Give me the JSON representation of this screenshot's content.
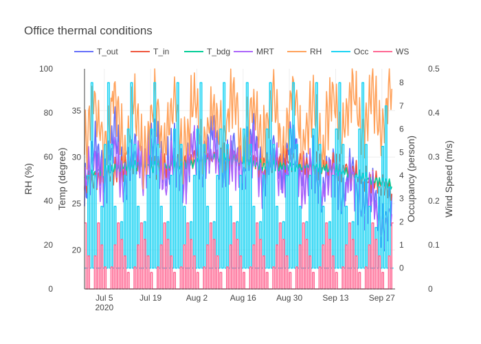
{
  "chart_data": {
    "type": "line",
    "title": "Office thermal conditions",
    "x_axis": {
      "type": "date",
      "range": [
        "2020-06-29",
        "2020-10-01"
      ],
      "ticks": [
        {
          "value": "2020-07-05",
          "label": "Jul 5",
          "sublabel": "2020"
        },
        {
          "value": "2020-07-19",
          "label": "Jul 19"
        },
        {
          "value": "2020-08-02",
          "label": "Aug 2"
        },
        {
          "value": "2020-08-16",
          "label": "Aug 16"
        },
        {
          "value": "2020-08-30",
          "label": "Aug 30"
        },
        {
          "value": "2020-09-13",
          "label": "Sep 13"
        },
        {
          "value": "2020-09-27",
          "label": "Sep 27"
        }
      ]
    },
    "y_axes": {
      "rh": {
        "label": "RH (%)",
        "range": [
          0,
          100
        ],
        "ticks": [
          0,
          20,
          40,
          60,
          80,
          100
        ]
      },
      "temp": {
        "label": "Temp (degree)",
        "range": [
          15.8,
          39.5
        ],
        "ticks": [
          20,
          25,
          30,
          35
        ]
      },
      "occ": {
        "label": "Occupancy (person)",
        "range": [
          -0.9,
          8.6
        ],
        "ticks": [
          0,
          1,
          2,
          3,
          4,
          5,
          6,
          7,
          8
        ]
      },
      "ws": {
        "label": "Wind Speed (m/s)",
        "range": [
          0,
          0.5
        ],
        "ticks": [
          0,
          0.1,
          0.2,
          0.3,
          0.4,
          0.5
        ]
      }
    },
    "legend_position": "top",
    "series": [
      {
        "name": "T_out",
        "axis": "temp",
        "color": "#636efa",
        "points": [
          [
            "2020-06-29",
            26
          ],
          [
            "2020-07-02",
            31
          ],
          [
            "2020-07-05",
            28
          ],
          [
            "2020-07-08",
            33
          ],
          [
            "2020-07-11",
            27
          ],
          [
            "2020-07-14",
            32
          ],
          [
            "2020-07-17",
            29
          ],
          [
            "2020-07-20",
            33
          ],
          [
            "2020-07-23",
            28
          ],
          [
            "2020-07-26",
            31
          ],
          [
            "2020-07-29",
            27
          ],
          [
            "2020-08-01",
            32
          ],
          [
            "2020-08-04",
            29
          ],
          [
            "2020-08-07",
            33
          ],
          [
            "2020-08-10",
            28
          ],
          [
            "2020-08-13",
            31
          ],
          [
            "2020-08-16",
            29
          ],
          [
            "2020-08-19",
            33
          ],
          [
            "2020-08-22",
            27
          ],
          [
            "2020-08-25",
            31
          ],
          [
            "2020-08-28",
            28
          ],
          [
            "2020-08-31",
            33
          ],
          [
            "2020-09-03",
            27
          ],
          [
            "2020-09-06",
            30
          ],
          [
            "2020-09-09",
            26
          ],
          [
            "2020-09-12",
            30
          ],
          [
            "2020-09-15",
            25
          ],
          [
            "2020-09-18",
            29
          ],
          [
            "2020-09-21",
            24
          ],
          [
            "2020-09-24",
            27
          ],
          [
            "2020-09-27",
            22
          ],
          [
            "2020-09-30",
            25
          ]
        ]
      },
      {
        "name": "T_in",
        "axis": "temp",
        "color": "#ef553b",
        "points": [
          [
            "2020-06-29",
            27
          ],
          [
            "2020-07-05",
            28
          ],
          [
            "2020-07-12",
            29
          ],
          [
            "2020-07-19",
            29
          ],
          [
            "2020-07-26",
            29
          ],
          [
            "2020-08-02",
            30
          ],
          [
            "2020-08-09",
            30
          ],
          [
            "2020-08-16",
            30
          ],
          [
            "2020-08-23",
            29
          ],
          [
            "2020-08-30",
            30
          ],
          [
            "2020-09-06",
            29
          ],
          [
            "2020-09-13",
            29
          ],
          [
            "2020-09-20",
            28
          ],
          [
            "2020-09-27",
            27
          ],
          [
            "2020-09-30",
            26
          ]
        ]
      },
      {
        "name": "T_bdg",
        "axis": "temp",
        "color": "#00cc96",
        "points": [
          [
            "2020-06-29",
            28
          ],
          [
            "2020-07-12",
            29
          ],
          [
            "2020-07-26",
            29
          ],
          [
            "2020-08-09",
            30
          ],
          [
            "2020-08-23",
            29
          ],
          [
            "2020-09-06",
            29
          ],
          [
            "2020-09-20",
            28
          ],
          [
            "2020-09-30",
            27
          ]
        ]
      },
      {
        "name": "MRT",
        "axis": "temp",
        "color": "#ab63fa",
        "points": [
          [
            "2020-06-29",
            27
          ],
          [
            "2020-07-02",
            30
          ],
          [
            "2020-07-05",
            27
          ],
          [
            "2020-07-08",
            31
          ],
          [
            "2020-07-11",
            27
          ],
          [
            "2020-07-14",
            30
          ],
          [
            "2020-07-17",
            28
          ],
          [
            "2020-07-20",
            31
          ],
          [
            "2020-07-23",
            27
          ],
          [
            "2020-07-26",
            30
          ],
          [
            "2020-07-29",
            27
          ],
          [
            "2020-08-01",
            31
          ],
          [
            "2020-08-04",
            28
          ],
          [
            "2020-08-07",
            31
          ],
          [
            "2020-08-10",
            28
          ],
          [
            "2020-08-13",
            30
          ],
          [
            "2020-08-16",
            28
          ],
          [
            "2020-08-19",
            31
          ],
          [
            "2020-08-22",
            27
          ],
          [
            "2020-08-25",
            30
          ],
          [
            "2020-08-28",
            27
          ],
          [
            "2020-08-31",
            31
          ],
          [
            "2020-09-03",
            27
          ],
          [
            "2020-09-06",
            29
          ],
          [
            "2020-09-09",
            26
          ],
          [
            "2020-09-12",
            29
          ],
          [
            "2020-09-15",
            25
          ],
          [
            "2020-09-18",
            28
          ],
          [
            "2020-09-21",
            24
          ],
          [
            "2020-09-24",
            26
          ],
          [
            "2020-09-27",
            22
          ],
          [
            "2020-09-30",
            24
          ]
        ]
      },
      {
        "name": "RH",
        "axis": "rh",
        "color": "#ffa15a",
        "points": [
          [
            "2020-06-29",
            65
          ],
          [
            "2020-07-02",
            88
          ],
          [
            "2020-07-05",
            60
          ],
          [
            "2020-07-08",
            90
          ],
          [
            "2020-07-11",
            62
          ],
          [
            "2020-07-14",
            85
          ],
          [
            "2020-07-17",
            58
          ],
          [
            "2020-07-20",
            88
          ],
          [
            "2020-07-23",
            64
          ],
          [
            "2020-07-26",
            86
          ],
          [
            "2020-07-29",
            60
          ],
          [
            "2020-08-01",
            89
          ],
          [
            "2020-08-04",
            62
          ],
          [
            "2020-08-07",
            84
          ],
          [
            "2020-08-10",
            65
          ],
          [
            "2020-08-13",
            90
          ],
          [
            "2020-08-16",
            60
          ],
          [
            "2020-08-19",
            85
          ],
          [
            "2020-08-22",
            66
          ],
          [
            "2020-08-25",
            88
          ],
          [
            "2020-08-28",
            61
          ],
          [
            "2020-08-31",
            92
          ],
          [
            "2020-09-03",
            64
          ],
          [
            "2020-09-06",
            86
          ],
          [
            "2020-09-09",
            62
          ],
          [
            "2020-09-12",
            90
          ],
          [
            "2020-09-15",
            66
          ],
          [
            "2020-09-18",
            94
          ],
          [
            "2020-09-21",
            70
          ],
          [
            "2020-09-24",
            92
          ],
          [
            "2020-09-27",
            72
          ],
          [
            "2020-09-30",
            97
          ]
        ]
      },
      {
        "name": "Occ",
        "axis": "occ",
        "color": "#19d3f3",
        "points": [
          [
            "2020-06-29",
            0
          ],
          [
            "2020-07-01",
            8
          ],
          [
            "2020-07-03",
            0
          ],
          [
            "2020-07-06",
            8
          ],
          [
            "2020-07-09",
            0
          ],
          [
            "2020-07-13",
            8
          ],
          [
            "2020-07-16",
            0
          ],
          [
            "2020-07-20",
            8
          ],
          [
            "2020-07-23",
            0
          ],
          [
            "2020-07-27",
            8
          ],
          [
            "2020-07-30",
            0
          ],
          [
            "2020-08-03",
            8
          ],
          [
            "2020-08-06",
            0
          ],
          [
            "2020-08-10",
            8
          ],
          [
            "2020-08-13",
            0
          ],
          [
            "2020-08-17",
            8
          ],
          [
            "2020-08-20",
            0
          ],
          [
            "2020-08-24",
            8
          ],
          [
            "2020-08-27",
            0
          ],
          [
            "2020-08-31",
            8
          ],
          [
            "2020-09-03",
            0
          ],
          [
            "2020-09-07",
            8
          ],
          [
            "2020-09-10",
            0
          ],
          [
            "2020-09-14",
            8
          ],
          [
            "2020-09-17",
            0
          ],
          [
            "2020-09-21",
            8
          ],
          [
            "2020-09-24",
            0
          ],
          [
            "2020-09-28",
            7
          ],
          [
            "2020-09-30",
            0
          ]
        ]
      },
      {
        "name": "WS",
        "axis": "ws",
        "color": "#ff6692",
        "points": [
          [
            "2020-06-29",
            0.15
          ],
          [
            "2020-07-01",
            0
          ],
          [
            "2020-07-03",
            0.15
          ],
          [
            "2020-07-06",
            0
          ],
          [
            "2020-07-09",
            0.15
          ],
          [
            "2020-07-13",
            0
          ],
          [
            "2020-07-16",
            0.15
          ],
          [
            "2020-07-20",
            0
          ],
          [
            "2020-07-23",
            0.15
          ],
          [
            "2020-07-27",
            0
          ],
          [
            "2020-07-30",
            0.15
          ],
          [
            "2020-08-03",
            0
          ],
          [
            "2020-08-06",
            0.15
          ],
          [
            "2020-08-10",
            0
          ],
          [
            "2020-08-13",
            0.15
          ],
          [
            "2020-08-17",
            0
          ],
          [
            "2020-08-20",
            0.15
          ],
          [
            "2020-08-24",
            0
          ],
          [
            "2020-08-27",
            0.15
          ],
          [
            "2020-08-31",
            0
          ],
          [
            "2020-09-03",
            0.15
          ],
          [
            "2020-09-07",
            0
          ],
          [
            "2020-09-10",
            0.15
          ],
          [
            "2020-09-14",
            0
          ],
          [
            "2020-09-17",
            0.15
          ],
          [
            "2020-09-21",
            0
          ],
          [
            "2020-09-24",
            0.15
          ],
          [
            "2020-09-28",
            0
          ],
          [
            "2020-09-30",
            0.15
          ]
        ]
      }
    ]
  }
}
